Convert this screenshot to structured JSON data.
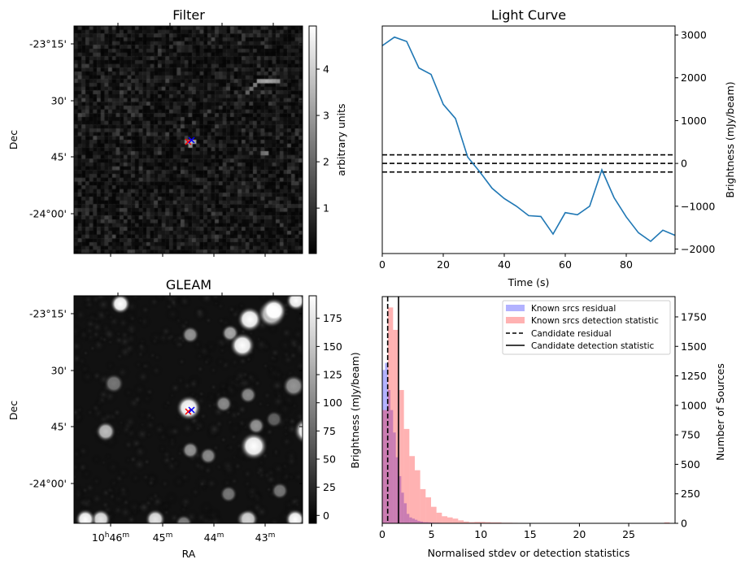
{
  "colors": {
    "line": "#1f77b4",
    "residual": "#0000ff",
    "detection": "#ff0000",
    "candidate": "#000000"
  },
  "filter_panel": {
    "title": "Filter",
    "ylabel": "Dec",
    "yticks": [
      "-23°15'",
      "30'",
      "45'",
      "-24°00'"
    ],
    "colorbar": {
      "label": "arbitrary units",
      "range": [
        0.02,
        4.93
      ],
      "ticks": [
        1,
        2,
        3,
        4
      ],
      "tick_labels": [
        "1",
        "2",
        "3",
        "4"
      ]
    }
  },
  "gleam_panel": {
    "title": "GLEAM",
    "ylabel": "Dec",
    "xlabel": "RA",
    "yticks": [
      "-23°15'",
      "30'",
      "45'",
      "-24°00'"
    ],
    "xticks": [
      {
        "h": "10",
        "hs": "h",
        "m": "46",
        "ms": "m"
      },
      {
        "h": "",
        "hs": "",
        "m": "45",
        "ms": "m"
      },
      {
        "h": "",
        "hs": "",
        "m": "44",
        "ms": "m"
      },
      {
        "h": "",
        "hs": "",
        "m": "43",
        "ms": "m"
      }
    ],
    "colorbar": {
      "label": "Brightness (mJy/beam)",
      "range": [
        -7,
        195
      ],
      "ticks": [
        0,
        25,
        50,
        75,
        100,
        125,
        150,
        175
      ],
      "tick_labels": [
        "0",
        "25",
        "50",
        "75",
        "100",
        "125",
        "150",
        "175"
      ]
    }
  },
  "chart_data": [
    {
      "type": "line",
      "title": "Light Curve",
      "xlabel": "Time (s)",
      "ylabel": "Brightness (mJy/beam)",
      "xlim": [
        0,
        96
      ],
      "ylim": [
        -2105,
        3210
      ],
      "xticks": [
        0,
        20,
        40,
        60,
        80
      ],
      "yticks": [
        -2000,
        -1000,
        0,
        1000,
        2000,
        3000
      ],
      "ytick_labels": [
        "−2000",
        "−1000",
        "0",
        "1000",
        "2000",
        "3000"
      ],
      "x": [
        0,
        4,
        8,
        12,
        16,
        20,
        24,
        28,
        32,
        36,
        40,
        44,
        48,
        52,
        56,
        60,
        64,
        68,
        72,
        76,
        80,
        84,
        88,
        92,
        96
      ],
      "y": [
        2750,
        2950,
        2850,
        2230,
        2080,
        1380,
        1050,
        150,
        -200,
        -580,
        -820,
        -1000,
        -1220,
        -1240,
        -1650,
        -1150,
        -1200,
        -1000,
        -150,
        -800,
        -1250,
        -1620,
        -1820,
        -1560,
        -1680
      ],
      "hlines": [
        200,
        0,
        -200
      ],
      "grid": false
    },
    {
      "type": "bar",
      "xlabel": "Normalised stdev or detection statistics",
      "ylabel": "Number of Sources",
      "xlim": [
        0,
        29.7
      ],
      "ylim": [
        0,
        1922
      ],
      "xticks": [
        0,
        5,
        10,
        15,
        20,
        25
      ],
      "yticks": [
        0,
        250,
        500,
        750,
        1000,
        1250,
        1500,
        1750
      ],
      "legend_position": "top-right",
      "series": [
        {
          "name": "Known srcs residual",
          "bin_start": 0,
          "bin_width": 0.275,
          "values": [
            1300,
            1360,
            1130,
            960,
            770,
            560,
            400,
            260,
            170,
            80,
            50,
            40,
            30,
            20,
            15,
            10,
            10,
            8,
            6,
            5,
            5,
            4,
            3,
            3,
            3,
            2,
            2,
            2,
            2,
            1,
            1,
            1
          ]
        },
        {
          "name": "Known srcs detection statistic",
          "bin_start": 0,
          "bin_width": 0.55,
          "values": [
            960,
            1830,
            1640,
            1130,
            800,
            570,
            450,
            290,
            220,
            140,
            90,
            60,
            50,
            40,
            25,
            15,
            10,
            12,
            12,
            10,
            8,
            8,
            5,
            5,
            4,
            3,
            3,
            3,
            3,
            3,
            3,
            2,
            2,
            2,
            0,
            0,
            0,
            0,
            0,
            0,
            0,
            0,
            0,
            0,
            0,
            0,
            0,
            0,
            0,
            0,
            0,
            0,
            8,
            0
          ]
        }
      ],
      "vlines": [
        {
          "name": "Candidate residual",
          "x": 0.55,
          "style": "dashed"
        },
        {
          "name": "Candidate detection statistic",
          "x": 1.65,
          "style": "solid"
        }
      ]
    }
  ]
}
